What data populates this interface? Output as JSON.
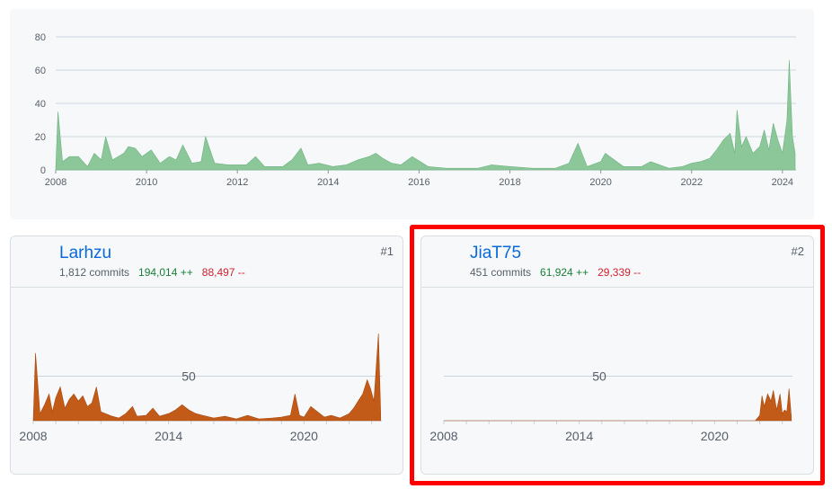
{
  "overview": {
    "y_ticks": [
      "0",
      "20",
      "40",
      "60",
      "80"
    ],
    "x_ticks": [
      "2008",
      "2010",
      "2012",
      "2014",
      "2016",
      "2018",
      "2020",
      "2022",
      "2024"
    ]
  },
  "contributors": [
    {
      "username": "Larhzu",
      "commits": "1,812 commits",
      "additions": "194,014 ++",
      "deletions": "88,497 --",
      "rank": "#1",
      "gridline_label": "50",
      "x_ticks": [
        "2008",
        "2014",
        "2020"
      ]
    },
    {
      "username": "JiaT75",
      "commits": "451 commits",
      "additions": "61,924 ++",
      "deletions": "29,339 --",
      "rank": "#2",
      "gridline_label": "50",
      "x_ticks": [
        "2008",
        "2014",
        "2020"
      ]
    }
  ],
  "chart_data": [
    {
      "type": "area",
      "ylim": [
        0,
        80
      ],
      "xlim": [
        2008,
        2024.3
      ],
      "series": [
        {
          "values": [
            [
              2008.0,
              0
            ],
            [
              2008.05,
              35
            ],
            [
              2008.15,
              5
            ],
            [
              2008.3,
              8
            ],
            [
              2008.5,
              8
            ],
            [
              2008.7,
              2
            ],
            [
              2008.85,
              10
            ],
            [
              2009.0,
              6
            ],
            [
              2009.1,
              20
            ],
            [
              2009.25,
              6
            ],
            [
              2009.5,
              10
            ],
            [
              2009.6,
              14
            ],
            [
              2009.75,
              13
            ],
            [
              2009.9,
              8
            ],
            [
              2010.1,
              12
            ],
            [
              2010.3,
              4
            ],
            [
              2010.5,
              8
            ],
            [
              2010.65,
              6
            ],
            [
              2010.8,
              15
            ],
            [
              2011.0,
              4
            ],
            [
              2011.2,
              5
            ],
            [
              2011.3,
              20
            ],
            [
              2011.5,
              4
            ],
            [
              2011.8,
              3
            ],
            [
              2012.2,
              3
            ],
            [
              2012.4,
              8
            ],
            [
              2012.6,
              2
            ],
            [
              2013.0,
              2
            ],
            [
              2013.2,
              6
            ],
            [
              2013.4,
              13
            ],
            [
              2013.55,
              3
            ],
            [
              2013.8,
              4
            ],
            [
              2014.1,
              2
            ],
            [
              2014.4,
              3
            ],
            [
              2014.65,
              6
            ],
            [
              2014.9,
              8
            ],
            [
              2015.05,
              10
            ],
            [
              2015.2,
              7
            ],
            [
              2015.4,
              4
            ],
            [
              2015.6,
              3
            ],
            [
              2015.85,
              8
            ],
            [
              2016.2,
              2
            ],
            [
              2016.6,
              1
            ],
            [
              2017.0,
              1
            ],
            [
              2017.3,
              1
            ],
            [
              2017.6,
              3
            ],
            [
              2018.0,
              2
            ],
            [
              2018.5,
              1
            ],
            [
              2019.0,
              1
            ],
            [
              2019.3,
              4
            ],
            [
              2019.5,
              16
            ],
            [
              2019.7,
              2
            ],
            [
              2020.0,
              5
            ],
            [
              2020.1,
              10
            ],
            [
              2020.2,
              8
            ],
            [
              2020.5,
              2
            ],
            [
              2020.9,
              2
            ],
            [
              2021.1,
              5
            ],
            [
              2021.5,
              1
            ],
            [
              2021.8,
              2
            ],
            [
              2022.0,
              4
            ],
            [
              2022.2,
              5
            ],
            [
              2022.4,
              7
            ],
            [
              2022.55,
              12
            ],
            [
              2022.7,
              18
            ],
            [
              2022.85,
              22
            ],
            [
              2022.95,
              10
            ],
            [
              2023.0,
              36
            ],
            [
              2023.1,
              14
            ],
            [
              2023.2,
              20
            ],
            [
              2023.35,
              10
            ],
            [
              2023.5,
              14
            ],
            [
              2023.6,
              24
            ],
            [
              2023.7,
              12
            ],
            [
              2023.8,
              28
            ],
            [
              2023.9,
              18
            ],
            [
              2024.0,
              10
            ],
            [
              2024.1,
              30
            ],
            [
              2024.15,
              66
            ],
            [
              2024.22,
              20
            ],
            [
              2024.28,
              10
            ]
          ]
        }
      ]
    },
    {
      "type": "area",
      "ylim": [
        0,
        100
      ],
      "series": [
        {
          "name": "Larhzu",
          "values": [
            [
              2008.0,
              0
            ],
            [
              2008.1,
              76
            ],
            [
              2008.3,
              8
            ],
            [
              2008.5,
              18
            ],
            [
              2008.7,
              30
            ],
            [
              2008.85,
              10
            ],
            [
              2009.0,
              26
            ],
            [
              2009.2,
              38
            ],
            [
              2009.4,
              14
            ],
            [
              2009.6,
              24
            ],
            [
              2009.8,
              30
            ],
            [
              2010.0,
              22
            ],
            [
              2010.2,
              28
            ],
            [
              2010.4,
              16
            ],
            [
              2010.6,
              20
            ],
            [
              2010.8,
              38
            ],
            [
              2011.0,
              10
            ],
            [
              2011.2,
              8
            ],
            [
              2011.5,
              5
            ],
            [
              2011.8,
              3
            ],
            [
              2012.1,
              8
            ],
            [
              2012.4,
              16
            ],
            [
              2012.6,
              5
            ],
            [
              2013.0,
              6
            ],
            [
              2013.3,
              14
            ],
            [
              2013.6,
              5
            ],
            [
              2014.0,
              8
            ],
            [
              2014.3,
              12
            ],
            [
              2014.6,
              18
            ],
            [
              2014.9,
              12
            ],
            [
              2015.2,
              8
            ],
            [
              2015.5,
              6
            ],
            [
              2016.0,
              3
            ],
            [
              2016.5,
              5
            ],
            [
              2017.0,
              2
            ],
            [
              2017.5,
              6
            ],
            [
              2018.0,
              2
            ],
            [
              2018.6,
              3
            ],
            [
              2019.0,
              4
            ],
            [
              2019.4,
              6
            ],
            [
              2019.6,
              30
            ],
            [
              2019.8,
              6
            ],
            [
              2020.0,
              4
            ],
            [
              2020.3,
              16
            ],
            [
              2020.6,
              10
            ],
            [
              2020.9,
              4
            ],
            [
              2021.2,
              6
            ],
            [
              2021.6,
              3
            ],
            [
              2022.0,
              8
            ],
            [
              2022.2,
              14
            ],
            [
              2022.4,
              22
            ],
            [
              2022.6,
              30
            ],
            [
              2022.8,
              46
            ],
            [
              2022.95,
              36
            ],
            [
              2023.1,
              22
            ],
            [
              2023.3,
              98
            ],
            [
              2023.4,
              8
            ]
          ]
        }
      ]
    },
    {
      "type": "area",
      "ylim": [
        0,
        100
      ],
      "series": [
        {
          "name": "JiaT75",
          "values": [
            [
              2008.0,
              0
            ],
            [
              2021.8,
              0
            ],
            [
              2022.0,
              6
            ],
            [
              2022.1,
              28
            ],
            [
              2022.2,
              16
            ],
            [
              2022.35,
              30
            ],
            [
              2022.5,
              22
            ],
            [
              2022.6,
              34
            ],
            [
              2022.75,
              12
            ],
            [
              2022.9,
              30
            ],
            [
              2023.0,
              8
            ],
            [
              2023.1,
              12
            ],
            [
              2023.2,
              10
            ],
            [
              2023.3,
              36
            ],
            [
              2023.4,
              5
            ]
          ]
        }
      ]
    }
  ]
}
